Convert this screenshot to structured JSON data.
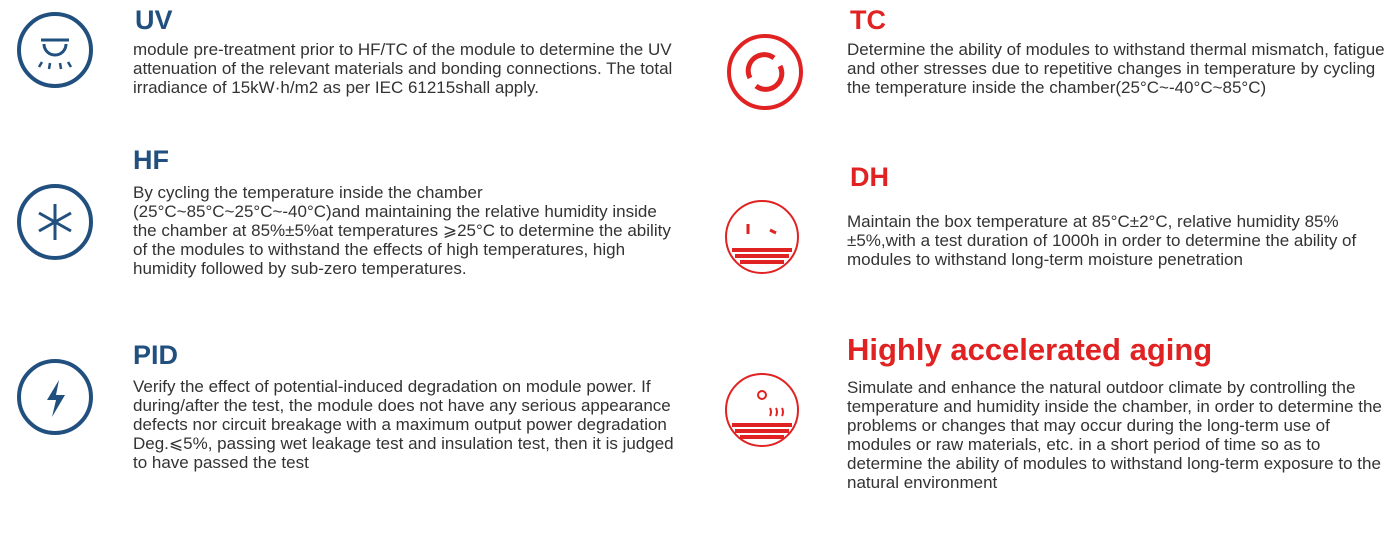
{
  "items": [
    {
      "title": "UV",
      "description": "module pre-treatment prior to HF/TC of the module to determine the UV attenuation of the relevant materials and bonding connections. The total irradiance of 15kW·h/m2 as per IEC 61215shall apply."
    },
    {
      "title": "HF",
      "description": "By cycling the temperature inside the chamber (25°C~85°C~25°C~-40°C)and maintaining the relative humidity inside the chamber at 85%±5%at temperatures ⩾25°C to determine the ability of the modules to withstand the effects of high temperatures, high humidity followed by sub-zero temperatures."
    },
    {
      "title": "PID",
      "description": "Verify the effect of potential-induced degradation on module power. If during/after the test, the module does not have any serious appearance defects nor circuit breakage with a maximum output power degradation Deg.⩽5%, passing wet leakage test and insulation test, then it is judged to have passed the test"
    },
    {
      "title": "TC",
      "description": "Determine the ability of modules to withstand thermal mismatch, fatigue and other stresses due to repetitive changes in temperature by cycling the temperature inside the chamber(25°C~-40°C~85°C)"
    },
    {
      "title": "DH",
      "description": "Maintain the box temperature at 85°C±2°C, relative humidity 85%±5%,with a test duration of 1000h in order to determine the ability of modules to withstand long-term moisture penetration"
    },
    {
      "title": "Highly accelerated aging",
      "description": "Simulate and enhance the natural outdoor climate by controlling the temperature and humidity inside the chamber, in order to determine the problems or changes that may occur during the long-term use of modules or raw materials, etc. in a short period of time so as to determine the ability of modules to withstand long-term exposure to the natural environment"
    }
  ]
}
